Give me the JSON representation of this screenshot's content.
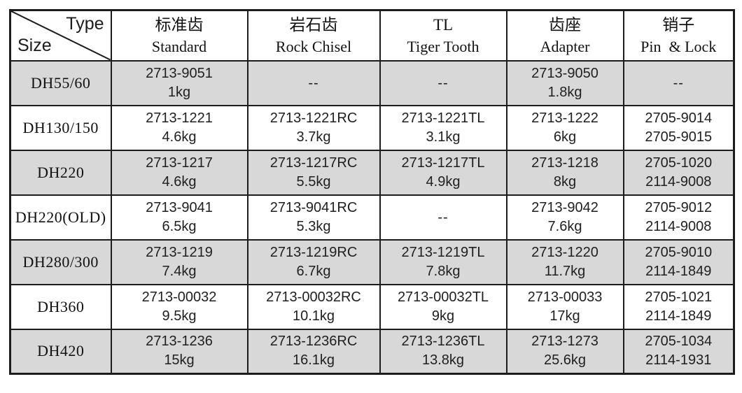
{
  "table": {
    "corner": {
      "top_right": "Type",
      "bottom_left": "Size"
    },
    "columns": [
      {
        "key": "standard",
        "line1": "标准齿",
        "line2": "Standard"
      },
      {
        "key": "rock-chisel",
        "line1": "岩石齿",
        "line2": "Rock Chisel"
      },
      {
        "key": "tiger-tooth",
        "line1": "TL",
        "line2": "Tiger Tooth"
      },
      {
        "key": "adapter",
        "line1": "齿座",
        "line2": "Adapter"
      },
      {
        "key": "pin-lock",
        "line1": "销子",
        "line2": "Pin  & Lock"
      }
    ],
    "rows": [
      {
        "size": "DH55/60",
        "cells": [
          [
            "2713-9051",
            "1kg"
          ],
          [
            "--"
          ],
          [
            "--"
          ],
          [
            "2713-9050",
            "1.8kg"
          ],
          [
            "--"
          ]
        ]
      },
      {
        "size": "DH130/150",
        "cells": [
          [
            "2713-1221",
            "4.6kg"
          ],
          [
            "2713-1221RC",
            "3.7kg"
          ],
          [
            "2713-1221TL",
            "3.1kg"
          ],
          [
            "2713-1222",
            "6kg"
          ],
          [
            "2705-9014",
            "2705-9015"
          ]
        ]
      },
      {
        "size": "DH220",
        "cells": [
          [
            "2713-1217",
            "4.6kg"
          ],
          [
            "2713-1217RC",
            "5.5kg"
          ],
          [
            "2713-1217TL",
            "4.9kg"
          ],
          [
            "2713-1218",
            "8kg"
          ],
          [
            "2705-1020",
            "2114-9008"
          ]
        ]
      },
      {
        "size": "DH220(OLD)",
        "cells": [
          [
            "2713-9041",
            "6.5kg"
          ],
          [
            "2713-9041RC",
            "5.3kg"
          ],
          [
            "--"
          ],
          [
            "2713-9042",
            "7.6kg"
          ],
          [
            "2705-9012",
            "2114-9008"
          ]
        ]
      },
      {
        "size": "DH280/300",
        "cells": [
          [
            "2713-1219",
            "7.4kg"
          ],
          [
            "2713-1219RC",
            "6.7kg"
          ],
          [
            "2713-1219TL",
            "7.8kg"
          ],
          [
            "2713-1220",
            "11.7kg"
          ],
          [
            "2705-9010",
            "2114-1849"
          ]
        ]
      },
      {
        "size": "DH360",
        "cells": [
          [
            "2713-00032",
            "9.5kg"
          ],
          [
            "2713-00032RC",
            "10.1kg"
          ],
          [
            "2713-00032TL",
            "9kg"
          ],
          [
            "2713-00033",
            "17kg"
          ],
          [
            "2705-1021",
            "2114-1849"
          ]
        ]
      },
      {
        "size": "DH420",
        "cells": [
          [
            "2713-1236",
            "15kg"
          ],
          [
            "2713-1236RC",
            "16.1kg"
          ],
          [
            "2713-1236TL",
            "13.8kg"
          ],
          [
            "2713-1273",
            "25.6kg"
          ],
          [
            "2705-1034",
            "2114-1931"
          ]
        ]
      }
    ],
    "colors": {
      "border": "#1c1c1c",
      "shaded_row": "#d8d8d8",
      "background": "#ffffff"
    }
  }
}
